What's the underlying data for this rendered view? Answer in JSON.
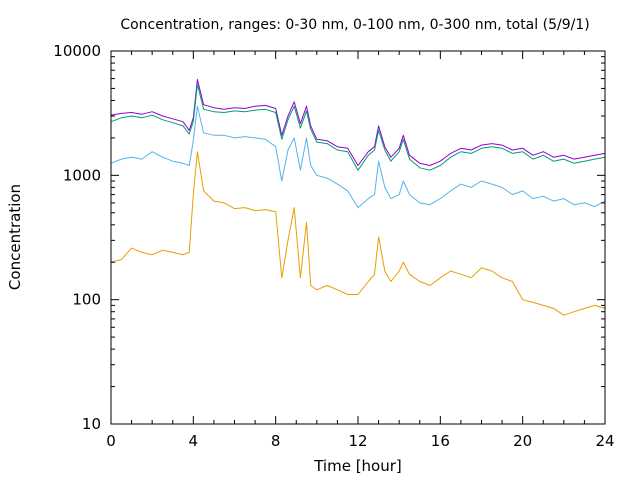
{
  "chart_data": {
    "type": "line",
    "title": "Concentration, ranges: 0-30 nm, 0-100 nm, 0-300 nm, total (5/9/1)",
    "xlabel": "Time [hour]",
    "ylabel": "Concentration",
    "xlim": [
      0,
      24
    ],
    "ylim": [
      10,
      10000
    ],
    "yscale": "log",
    "grid": false,
    "legend": "none",
    "x_ticks": [
      "0",
      "4",
      "8",
      "12",
      "16",
      "20",
      "24"
    ],
    "y_ticks": [
      "10",
      "100",
      "1000",
      "10000"
    ],
    "x": [
      0,
      0.5,
      1,
      1.5,
      2,
      2.5,
      3,
      3.5,
      3.8,
      4.0,
      4.2,
      4.5,
      5,
      5.5,
      6,
      6.5,
      7,
      7.5,
      8,
      8.3,
      8.6,
      8.9,
      9.2,
      9.5,
      9.7,
      10,
      10.5,
      11,
      11.5,
      12,
      12.5,
      12.8,
      13,
      13.3,
      13.6,
      14,
      14.2,
      14.5,
      15,
      15.5,
      16,
      16.5,
      17,
      17.5,
      18,
      18.5,
      19,
      19.5,
      20,
      20.5,
      21,
      21.5,
      22,
      22.5,
      23,
      23.5,
      24
    ],
    "series": [
      {
        "color": "#9400d3",
        "values": [
          3050,
          3150,
          3200,
          3100,
          3250,
          3000,
          2850,
          2700,
          2300,
          2900,
          5900,
          3700,
          3500,
          3400,
          3500,
          3450,
          3600,
          3650,
          3450,
          2100,
          3000,
          3900,
          2600,
          3600,
          2500,
          1950,
          1900,
          1700,
          1650,
          1200,
          1550,
          1700,
          2500,
          1700,
          1400,
          1650,
          2100,
          1450,
          1250,
          1200,
          1300,
          1500,
          1650,
          1600,
          1750,
          1800,
          1750,
          1600,
          1650,
          1450,
          1550,
          1400,
          1450,
          1350,
          1400,
          1450,
          1500
        ]
      },
      {
        "color": "#009e73",
        "values": [
          2700,
          2900,
          3000,
          2900,
          3050,
          2800,
          2650,
          2500,
          2150,
          2700,
          5400,
          3400,
          3250,
          3200,
          3300,
          3250,
          3350,
          3400,
          3200,
          1950,
          2800,
          3600,
          2400,
          3300,
          2350,
          1850,
          1800,
          1600,
          1550,
          1100,
          1450,
          1600,
          2300,
          1600,
          1300,
          1550,
          1950,
          1350,
          1150,
          1100,
          1200,
          1400,
          1550,
          1500,
          1650,
          1700,
          1650,
          1500,
          1550,
          1350,
          1450,
          1300,
          1350,
          1250,
          1300,
          1350,
          1400
        ]
      },
      {
        "color": "#56b4e9",
        "values": [
          1250,
          1350,
          1400,
          1350,
          1550,
          1400,
          1300,
          1250,
          1200,
          1900,
          3600,
          2200,
          2100,
          2100,
          2000,
          2050,
          2000,
          1950,
          1700,
          900,
          1600,
          2000,
          1100,
          2000,
          1200,
          1000,
          950,
          850,
          750,
          550,
          650,
          700,
          1300,
          800,
          650,
          700,
          900,
          700,
          600,
          580,
          650,
          750,
          850,
          800,
          900,
          850,
          800,
          700,
          750,
          650,
          680,
          620,
          650,
          580,
          600,
          560,
          620
        ]
      },
      {
        "color": "#e69f00",
        "values": [
          200,
          210,
          260,
          240,
          230,
          250,
          240,
          230,
          240,
          700,
          1550,
          750,
          620,
          600,
          540,
          550,
          520,
          530,
          510,
          150,
          300,
          550,
          150,
          420,
          130,
          120,
          130,
          120,
          110,
          110,
          140,
          160,
          320,
          170,
          140,
          170,
          200,
          160,
          140,
          130,
          150,
          170,
          160,
          150,
          180,
          170,
          150,
          140,
          100,
          95,
          90,
          85,
          75,
          80,
          85,
          90,
          85
        ]
      }
    ]
  }
}
